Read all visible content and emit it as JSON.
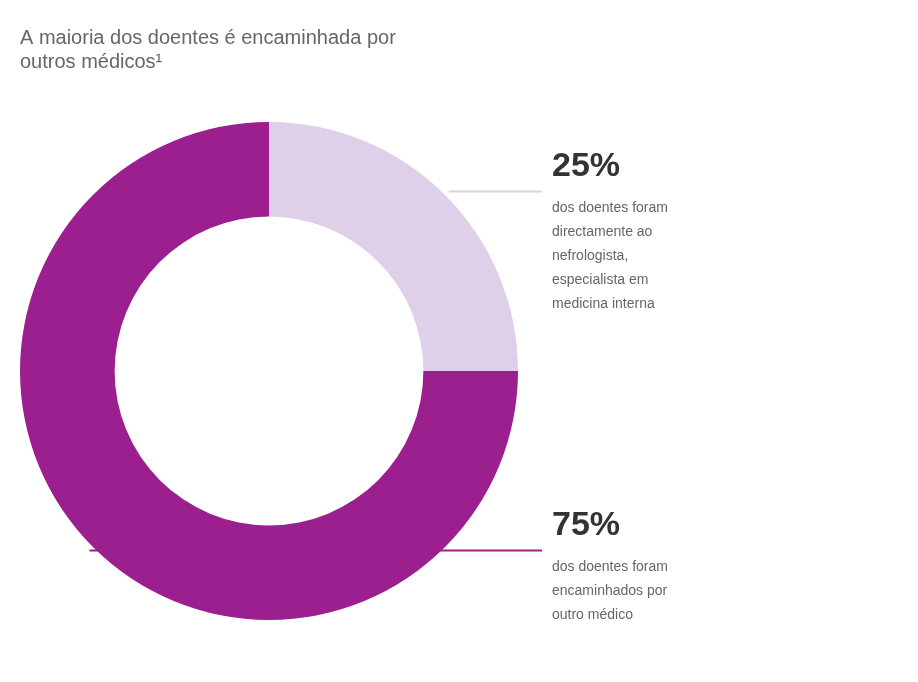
{
  "chart_data": {
    "type": "doughnut",
    "title": "A maioria dos doentes é encaminhada por\noutros médicos¹",
    "categories": [
      "dos doentes foram\ndirectamente ao\nnefrologista,\nespecialista em\nmedicina interna",
      "dos doentes foram\nencaminhados por\noutro médico"
    ],
    "values": [
      25,
      75
    ],
    "value_labels": [
      "25%",
      "75%"
    ],
    "colors": [
      "#ddd0e8",
      "#9b1f8e"
    ],
    "data_labels": true
  }
}
